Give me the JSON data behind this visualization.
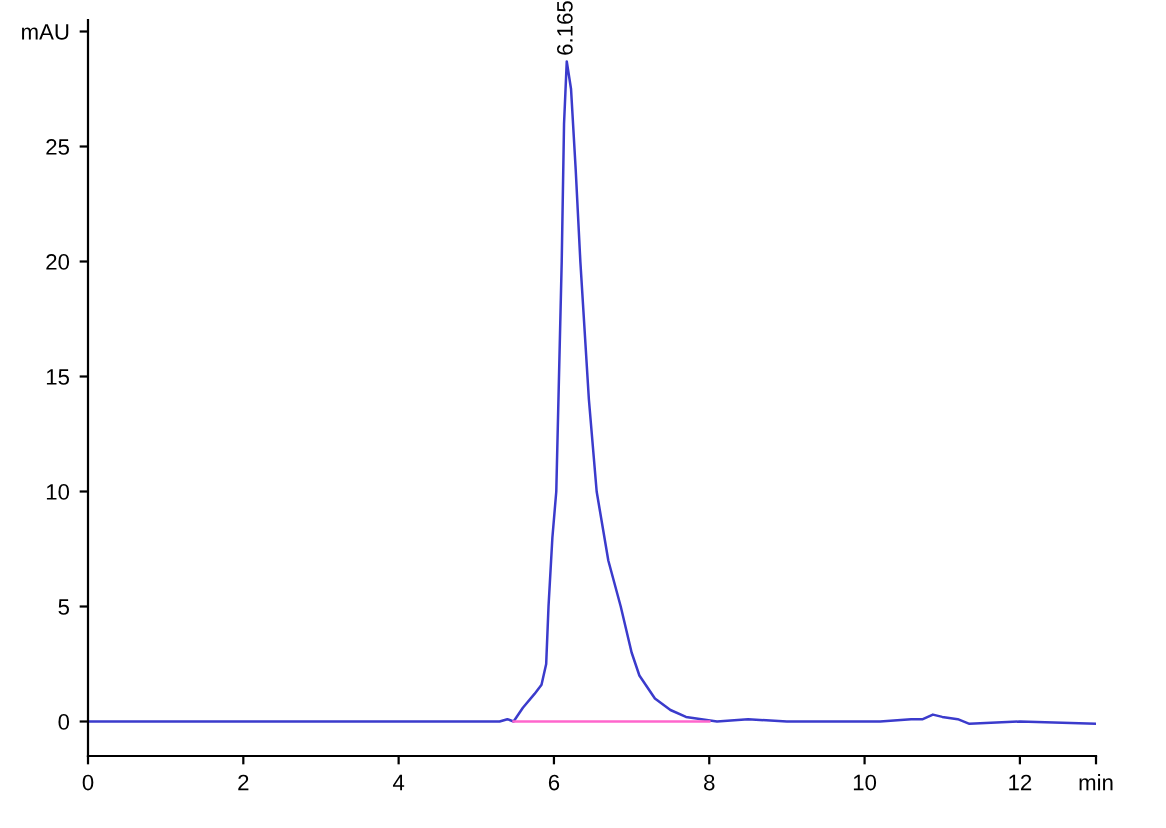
{
  "chart_data": {
    "type": "line",
    "series": [
      {
        "color": "#3b3bcc",
        "x": [
          0,
          5.3,
          5.4,
          5.48,
          5.6,
          5.75,
          5.84,
          5.9,
          5.93,
          5.98,
          6.03,
          6.1,
          6.13,
          6.165,
          6.22,
          6.28,
          6.34,
          6.45,
          6.55,
          6.7,
          6.86,
          7.0,
          7.1,
          7.3,
          7.5,
          7.7,
          7.9,
          8.1,
          8.5,
          9.0,
          10.2,
          10.6,
          10.75,
          10.88,
          11.0,
          11.2,
          11.35,
          12.0,
          12.98
        ],
        "values": [
          0,
          0,
          0.1,
          0,
          0.6,
          1.2,
          1.6,
          2.5,
          5,
          8,
          10,
          20,
          26,
          28.7,
          27.5,
          24,
          20,
          14,
          10,
          7,
          5,
          3,
          2,
          1,
          0.5,
          0.2,
          0.1,
          0,
          0.1,
          0,
          0,
          0.1,
          0.1,
          0.3,
          0.2,
          0.1,
          -0.1,
          0,
          -0.1
        ]
      },
      {
        "color": "#ff66cc",
        "x": [
          5.48,
          8.0
        ],
        "values": [
          0,
          0
        ]
      }
    ],
    "annotations": [
      {
        "text": "6.165",
        "x": 6.165,
        "y": 28.7
      }
    ],
    "xlim": [
      0,
      12.98
    ],
    "ylim": [
      -1.5,
      30.5
    ],
    "xticks": [
      0,
      2,
      4,
      6,
      8,
      10,
      12,
      {
        "value": 12.98,
        "label": "min"
      }
    ],
    "yticks": [
      0,
      5,
      10,
      15,
      20,
      25,
      {
        "value": 30,
        "label": "mAU"
      }
    ],
    "grid": false,
    "legend": false
  }
}
